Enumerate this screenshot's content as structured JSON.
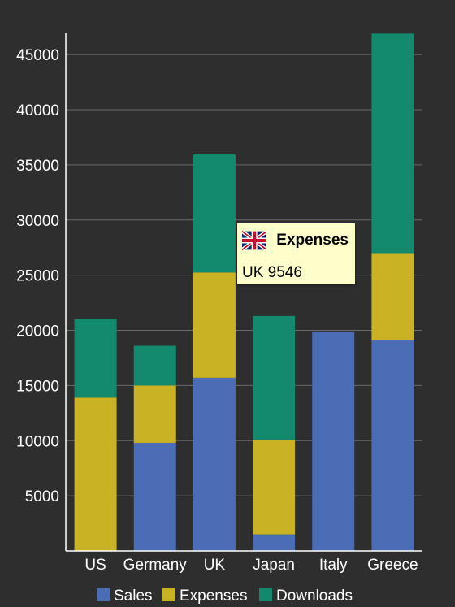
{
  "chart_data": {
    "type": "bar",
    "stacked": true,
    "categories": [
      "US",
      "Germany",
      "UK",
      "Japan",
      "Italy",
      "Greece"
    ],
    "series": [
      {
        "name": "Sales",
        "color": "#4a6db5",
        "values": [
          0,
          9800,
          15700,
          1500,
          19900,
          19100
        ]
      },
      {
        "name": "Expenses",
        "color": "#c9b324",
        "values": [
          13900,
          5200,
          9546,
          8600,
          0,
          7900
        ]
      },
      {
        "name": "Downloads",
        "color": "#138a6e",
        "values": [
          7100,
          3600,
          10700,
          11200,
          0,
          19900
        ]
      }
    ],
    "yticks": [
      "5000",
      "10000",
      "15000",
      "20000",
      "25000",
      "30000",
      "35000",
      "40000",
      "45000"
    ],
    "ylim": [
      0,
      47000
    ],
    "grid": true,
    "legend_position": "bottom"
  },
  "tooltip": {
    "series": "Expenses",
    "text": "UK 9546",
    "flag_icon": "uk-flag-icon"
  }
}
